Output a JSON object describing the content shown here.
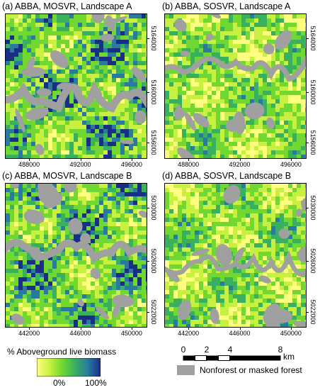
{
  "panels": [
    {
      "title": "(a) ABBA, MOSVR, Landscape A",
      "x_ticks": [
        "488000",
        "492000",
        "496000"
      ],
      "y_ticks": [
        "5164000",
        "5160000",
        "5156000"
      ],
      "style": "mosvr"
    },
    {
      "title": "(b) ABBA, SOSVR, Landscape A",
      "x_ticks": [
        "488000",
        "492000",
        "496000"
      ],
      "y_ticks": [
        "5164000",
        "5160000",
        "5156000"
      ],
      "style": "sosvr"
    },
    {
      "title": "(c) ABBA, MOSVR, Landscape B",
      "x_ticks": [
        "442000",
        "446000",
        "450000"
      ],
      "y_ticks": [
        "5030000",
        "5026000",
        "5022000"
      ],
      "style": "mosvr"
    },
    {
      "title": "(d) ABBA, SOSVR, Landscape B",
      "x_ticks": [
        "442000",
        "446000",
        "450000"
      ],
      "y_ticks": [
        "5030000",
        "5026000",
        "5022000"
      ],
      "style": "sosvr"
    }
  ],
  "legend": {
    "title": "% Aboveground live biomass",
    "min_label": "0%",
    "max_label": "100%",
    "ramp_colors": [
      "#ffff80",
      "#c8f040",
      "#70d830",
      "#38b060",
      "#2a7aa0",
      "#1a2e86"
    ]
  },
  "scalebar": {
    "labels": [
      "0",
      "2",
      "4",
      "8"
    ],
    "unit": "km"
  },
  "mask": {
    "label": "Nonforest or masked forest",
    "color": "#a0a0a0"
  }
}
